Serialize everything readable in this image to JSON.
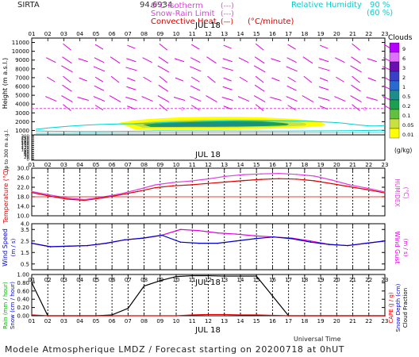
{
  "header": {
    "station": "SIRTA",
    "overprint": "94.6934",
    "legend_left": [
      {
        "label": "0°C isotherm",
        "sample": "(---)",
        "color": "#e040e0"
      },
      {
        "label": "Snow-Rain Limit",
        "sample": "(---)",
        "color": "#e040e0"
      },
      {
        "label": "Convective Heat.",
        "sample": "(—)",
        "unit": "(°C/minute)",
        "color": "#e00000"
      }
    ],
    "legend_right": {
      "label": "Relative Humidity",
      "v1": "90 %",
      "v2": "(60 %)",
      "color": "#00d0d0"
    }
  },
  "footer": {
    "universal_time": "Universal Time",
    "model_line": "Modele Atmospherique LMDZ / Forecast starting on 20200718 at 0hUT"
  },
  "hours": [
    "01",
    "02",
    "03",
    "04",
    "05",
    "06",
    "07",
    "08",
    "09",
    "10",
    "11",
    "12",
    "13",
    "14",
    "15",
    "16",
    "17",
    "18",
    "19",
    "20",
    "21",
    "22",
    "23"
  ],
  "date_label": "JUL 18",
  "chart_data": [
    {
      "type": "heatmap",
      "id": "height-panel",
      "title": "",
      "ylabel": "Height (m a.s.l.)",
      "ylabel_low": "Up to 300 m a.g.l.",
      "yticks_high": [
        "11000",
        "10000",
        "9000",
        "8000",
        "7000",
        "6000",
        "5000",
        "4000",
        "3000",
        "2000",
        "1000"
      ],
      "yticks_low": [
        "300",
        "250",
        "200",
        "180",
        "160",
        "140",
        "120",
        "100",
        "80",
        "60",
        "40",
        "20",
        "0"
      ],
      "clouds_legend": {
        "title": "Clouds",
        "unit": "(g/kg)",
        "levels": [
          "9",
          "6",
          "3",
          "2",
          "1",
          "0.5",
          "0.2",
          "0.1",
          "0.05",
          "0.01"
        ],
        "colors": [
          "#b400ff",
          "#e070ff",
          "#6b0fb0",
          "#3a3fc8",
          "#2a6ad0",
          "#1e8c8c",
          "#1aa050",
          "#60c040",
          "#c8e040",
          "#ffff00"
        ]
      },
      "isotherm_height_m": 3500,
      "isotherm_label": "0"
    },
    {
      "type": "line",
      "id": "temperature-panel",
      "ylabel": "Temperature (°C)",
      "ylabel_right": "HUMIDEX",
      "ylabel_right_unit": "(°C)",
      "yticks": [
        "30.0",
        "26.0",
        "22.0",
        "18.0",
        "14.0",
        "10.0"
      ],
      "ylim": [
        10,
        30
      ],
      "series": [
        {
          "color": "#e00000",
          "values": [
            19.8,
            18.3,
            17.0,
            16.5,
            17.5,
            18.8,
            20.2,
            21.8,
            22.6,
            23.0,
            23.6,
            24.2,
            24.8,
            25.3,
            25.6,
            25.4,
            24.7,
            23.5,
            22.2,
            21.0,
            19.6
          ]
        },
        {
          "color": "#e040e0",
          "values": [
            20.2,
            18.8,
            17.5,
            16.8,
            17.9,
            19.2,
            21.0,
            23.0,
            24.0,
            24.6,
            25.5,
            26.6,
            27.3,
            27.6,
            27.8,
            27.4,
            26.7,
            25.0,
            23.0,
            21.6,
            20.0
          ]
        }
      ]
    },
    {
      "type": "line",
      "id": "wind-panel",
      "ylabel": "Wind Speed",
      "ylabel_unit": "(m / s)",
      "ylabel_right": "Wind Gust",
      "ylabel_right_unit": "(m / s)",
      "yticks": [
        "4.0",
        "3.5",
        "2.5",
        "1.5",
        "0.5"
      ],
      "ylim": [
        0,
        4
      ],
      "series": [
        {
          "color": "#e000e0",
          "values": [
            2.3,
            2.0,
            2.05,
            2.1,
            2.3,
            2.6,
            2.75,
            3.0,
            3.5,
            3.4,
            3.2,
            3.1,
            2.95,
            2.85,
            2.75,
            2.5,
            2.2,
            2.1,
            2.3,
            2.5
          ]
        },
        {
          "color": "#0000c8",
          "values": [
            2.3,
            2.0,
            2.05,
            2.1,
            2.3,
            2.6,
            2.75,
            3.0,
            2.4,
            2.3,
            2.3,
            2.5,
            2.7,
            2.85,
            2.7,
            2.4,
            2.2,
            2.1,
            2.3,
            2.5
          ]
        }
      ]
    },
    {
      "type": "line",
      "id": "rain-panel",
      "ylabel_left": [
        "Rain (mm / hour)",
        "Snow (cm / hour)"
      ],
      "ylabel_right": [
        "CAPE (J / g)",
        "Snow Depth (cm)",
        "Cloud Fraction"
      ],
      "yticks": [
        "1.00",
        "0.80",
        "0.60",
        "0.40",
        "0.20",
        "0.00"
      ],
      "ylim": [
        0,
        1
      ],
      "series": [
        {
          "color": "#000000",
          "x": [
            0,
            1,
            2,
            3,
            4,
            5,
            6,
            7,
            8,
            9,
            10,
            11,
            12,
            13,
            14,
            15,
            16,
            17,
            18,
            19,
            20,
            21,
            22
          ],
          "values": [
            0.8,
            0.0,
            0.0,
            0.0,
            0.0,
            0.02,
            0.18,
            0.72,
            0.85,
            0.95,
            0.97,
            0.97,
            0.96,
            0.96,
            0.96,
            0.48,
            0.0,
            0.0,
            0.0,
            0.0,
            0.0,
            0.0,
            0.0
          ]
        },
        {
          "color": "#e00000",
          "x": [
            0,
            1,
            2,
            3,
            4,
            5,
            6,
            7,
            8,
            9,
            10,
            11,
            12,
            13,
            14,
            15,
            16,
            17,
            18,
            19,
            20,
            21,
            22
          ],
          "values": [
            0.02,
            0.0,
            0.0,
            0.0,
            0.0,
            0.0,
            0.0,
            0.0,
            0.0,
            0.0,
            0.02,
            0.03,
            0.03,
            0.02,
            0.02,
            0.01,
            0.0,
            0.0,
            0.0,
            0.0,
            0.0,
            0.0,
            0.0
          ]
        }
      ]
    }
  ]
}
